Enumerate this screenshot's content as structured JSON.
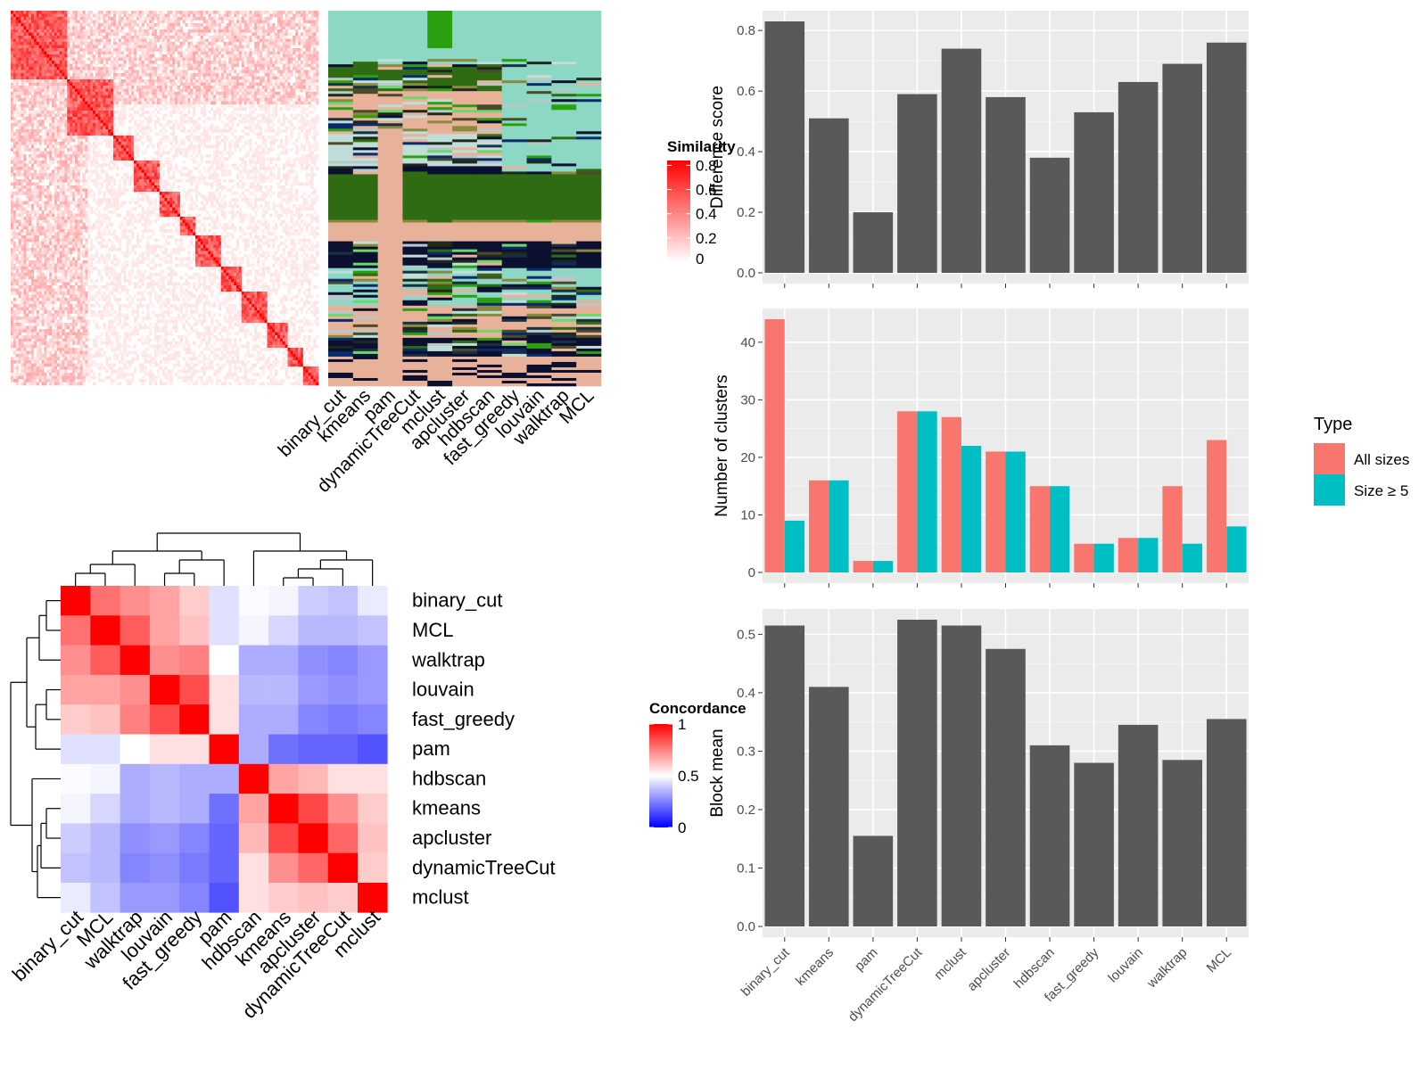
{
  "methods": [
    "binary_cut",
    "kmeans",
    "pam",
    "dynamicTreeCut",
    "mclust",
    "apcluster",
    "hdbscan",
    "fast_greedy",
    "louvain",
    "walktrap",
    "MCL"
  ],
  "heatmap_order": [
    "binary_cut",
    "MCL",
    "walktrap",
    "louvain",
    "fast_greedy",
    "pam",
    "hdbscan",
    "kmeans",
    "apcluster",
    "dynamicTreeCut",
    "mclust"
  ],
  "colors": {
    "bar_dark": "#595959",
    "all_sizes": "#F8766D",
    "size_ge5": "#00BFC4",
    "panel_bg": "#EBEBEB",
    "heat_high": "#FF0000",
    "heat_mid": "#FFFFFF",
    "heat_low": "#0000FF"
  },
  "similarity_legend": {
    "title": "Similarity",
    "ticks": [
      "0.8",
      "0.6",
      "0.4",
      "0.2",
      "0"
    ]
  },
  "concordance_legend": {
    "title": "Concordance",
    "ticks": [
      "1",
      "0.5",
      "0"
    ]
  },
  "type_legend": {
    "title": "Type",
    "items": [
      "All sizes",
      "Size ≥ 5"
    ]
  },
  "chart_data": [
    {
      "type": "bar",
      "categories": [
        "binary_cut",
        "kmeans",
        "pam",
        "dynamicTreeCut",
        "mclust",
        "apcluster",
        "hdbscan",
        "fast_greedy",
        "louvain",
        "walktrap",
        "MCL"
      ],
      "values": [
        0.83,
        0.51,
        0.2,
        0.59,
        0.74,
        0.58,
        0.38,
        0.53,
        0.63,
        0.69,
        0.76
      ],
      "xlabel": "",
      "ylabel": "Difference score",
      "ylim": [
        0,
        0.83
      ],
      "yticks": [
        0,
        0.2,
        0.4,
        0.6,
        0.8
      ],
      "ytick_labels": [
        "0.0",
        "0.2",
        "0.4",
        "0.6",
        "0.8"
      ],
      "grid": true
    },
    {
      "type": "bar",
      "categories": [
        "binary_cut",
        "kmeans",
        "pam",
        "dynamicTreeCut",
        "mclust",
        "apcluster",
        "hdbscan",
        "fast_greedy",
        "louvain",
        "walktrap",
        "MCL"
      ],
      "series": [
        {
          "name": "All sizes",
          "values": [
            44,
            16,
            2,
            28,
            27,
            21,
            15,
            5,
            6,
            15,
            23
          ]
        },
        {
          "name": "Size ≥ 5",
          "values": [
            9,
            16,
            2,
            28,
            22,
            21,
            15,
            5,
            6,
            5,
            8
          ]
        }
      ],
      "xlabel": "",
      "ylabel": "Number of clusters",
      "ylim": [
        0,
        44
      ],
      "yticks": [
        0,
        10,
        20,
        30,
        40
      ],
      "ytick_labels": [
        "0",
        "10",
        "20",
        "30",
        "40"
      ],
      "legend": "right",
      "grid": true
    },
    {
      "type": "bar",
      "categories": [
        "binary_cut",
        "kmeans",
        "pam",
        "dynamicTreeCut",
        "mclust",
        "apcluster",
        "hdbscan",
        "fast_greedy",
        "louvain",
        "walktrap",
        "MCL"
      ],
      "values": [
        0.515,
        0.41,
        0.155,
        0.525,
        0.515,
        0.475,
        0.31,
        0.28,
        0.345,
        0.285,
        0.355
      ],
      "xlabel": "",
      "ylabel": "Block mean",
      "ylim": [
        0,
        0.525
      ],
      "yticks": [
        0,
        0.1,
        0.2,
        0.3,
        0.4,
        0.5
      ],
      "ytick_labels": [
        "0.0",
        "0.1",
        "0.2",
        "0.3",
        "0.4",
        "0.5"
      ],
      "grid": true
    },
    {
      "type": "heatmap",
      "rows": [
        "binary_cut",
        "MCL",
        "walktrap",
        "louvain",
        "fast_greedy",
        "pam",
        "hdbscan",
        "kmeans",
        "apcluster",
        "dynamicTreeCut",
        "mclust"
      ],
      "cols": [
        "binary_cut",
        "MCL",
        "walktrap",
        "louvain",
        "fast_greedy",
        "pam",
        "hdbscan",
        "kmeans",
        "apcluster",
        "dynamicTreeCut",
        "mclust"
      ],
      "values": [
        [
          1.0,
          0.78,
          0.72,
          0.68,
          0.6,
          0.44,
          0.49,
          0.48,
          0.4,
          0.38,
          0.46
        ],
        [
          0.78,
          1.0,
          0.82,
          0.68,
          0.62,
          0.44,
          0.48,
          0.42,
          0.36,
          0.36,
          0.38
        ],
        [
          0.72,
          0.82,
          1.0,
          0.72,
          0.75,
          0.5,
          0.34,
          0.34,
          0.28,
          0.26,
          0.3
        ],
        [
          0.68,
          0.68,
          0.72,
          1.0,
          0.85,
          0.56,
          0.36,
          0.36,
          0.3,
          0.28,
          0.3
        ],
        [
          0.6,
          0.62,
          0.75,
          0.85,
          1.0,
          0.56,
          0.34,
          0.34,
          0.26,
          0.24,
          0.26
        ],
        [
          0.44,
          0.44,
          0.5,
          0.56,
          0.56,
          1.0,
          0.34,
          0.22,
          0.2,
          0.2,
          0.16
        ],
        [
          0.49,
          0.48,
          0.34,
          0.36,
          0.34,
          0.34,
          1.0,
          0.68,
          0.64,
          0.56,
          0.56
        ],
        [
          0.48,
          0.42,
          0.34,
          0.36,
          0.34,
          0.22,
          0.68,
          1.0,
          0.86,
          0.72,
          0.6
        ],
        [
          0.4,
          0.36,
          0.28,
          0.3,
          0.26,
          0.2,
          0.64,
          0.86,
          1.0,
          0.8,
          0.62
        ],
        [
          0.38,
          0.36,
          0.26,
          0.28,
          0.24,
          0.2,
          0.56,
          0.72,
          0.8,
          1.0,
          0.6
        ],
        [
          0.46,
          0.38,
          0.3,
          0.3,
          0.26,
          0.16,
          0.56,
          0.6,
          0.62,
          0.6,
          1.0
        ]
      ]
    }
  ]
}
